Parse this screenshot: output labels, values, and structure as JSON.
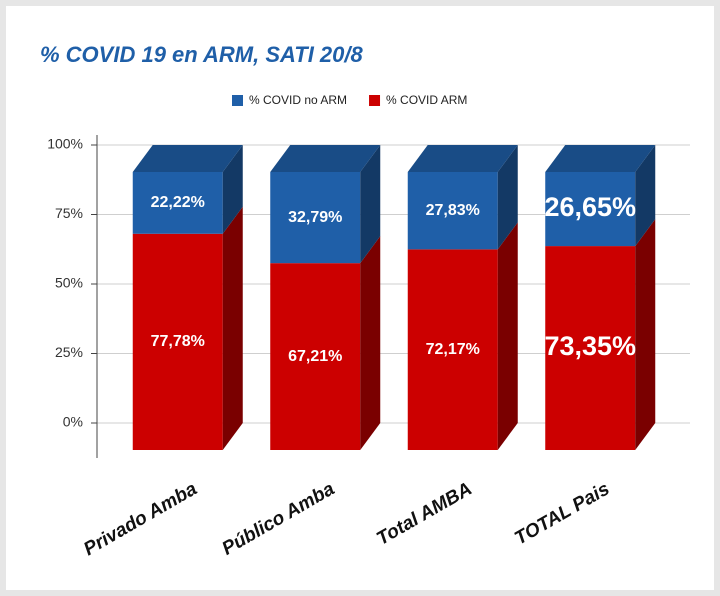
{
  "chart_data": {
    "type": "stacked-bar-3d",
    "title": "% COVID 19 en ARM, SATI 20/8",
    "categories": [
      "Privado Amba",
      "Público Amba",
      "Total AMBA",
      "TOTAL Pais"
    ],
    "series": [
      {
        "name": "% COVID ARM",
        "color": "#cc0000",
        "values": [
          77.78,
          67.21,
          72.17,
          73.35
        ],
        "value_labels": [
          "77,78%",
          "67,21%",
          "72,17%",
          "73,35%"
        ]
      },
      {
        "name": "% COVID no ARM",
        "color": "#1f5fa8",
        "values": [
          22.22,
          32.79,
          27.83,
          26.65
        ],
        "value_labels": [
          "22,22%",
          "32,79%",
          "27,83%",
          "26,65%"
        ]
      }
    ],
    "ylim": [
      0,
      100
    ],
    "yticks": [
      {
        "value": 0,
        "label": "0%"
      },
      {
        "value": 25,
        "label": "25%"
      },
      {
        "value": 50,
        "label": "50%"
      },
      {
        "value": 75,
        "label": "75%"
      },
      {
        "value": 100,
        "label": "100%"
      }
    ],
    "grid": true,
    "legend": "top"
  }
}
